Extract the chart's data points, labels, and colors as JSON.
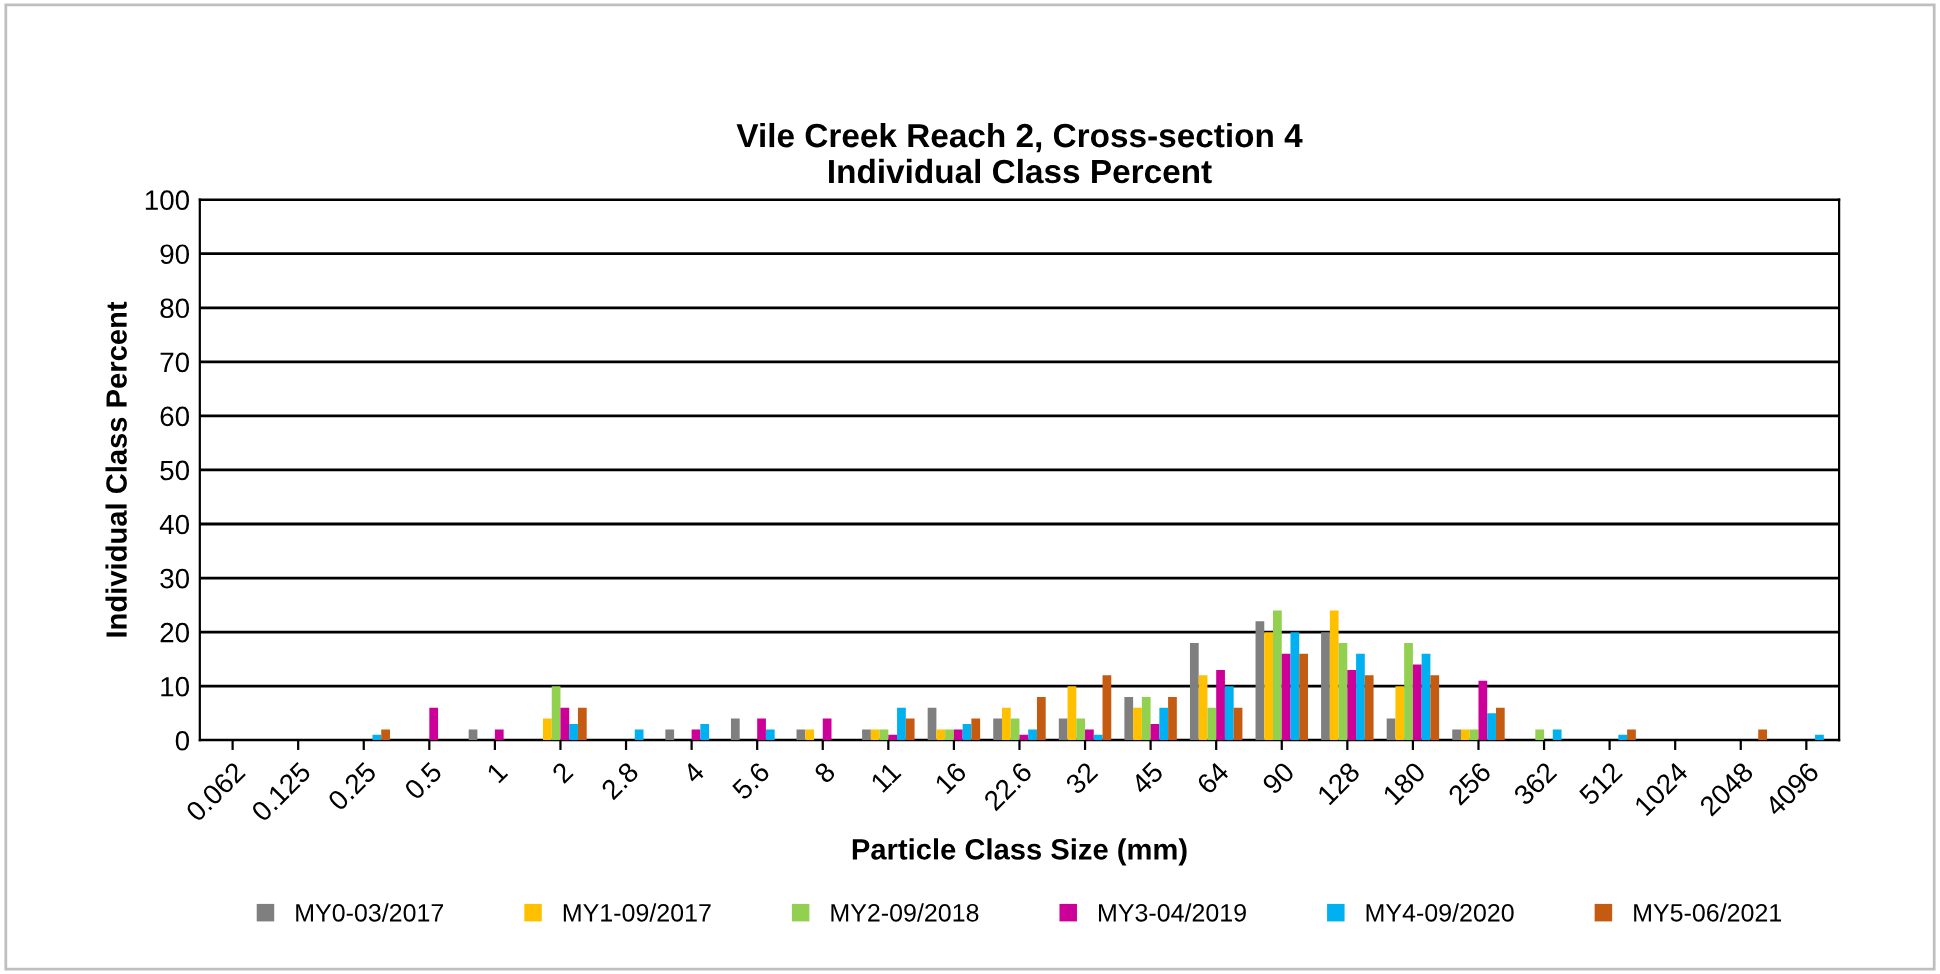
{
  "chart_data": {
    "type": "bar",
    "title": "Vile Creek Reach 2, Cross-section 4\nIndividual Class Percent",
    "xlabel": "Particle Class Size (mm)",
    "ylabel": "Individual Class Percent",
    "categories": [
      "0.062",
      "0.125",
      "0.25",
      "0.5",
      "1",
      "2",
      "2.8",
      "4",
      "5.6",
      "8",
      "11",
      "16",
      "22.6",
      "32",
      "45",
      "64",
      "90",
      "128",
      "180",
      "256",
      "362",
      "512",
      "1024",
      "2048",
      "4096"
    ],
    "series": [
      {
        "name": "MY0-03/2017",
        "color": "#7f7f7f",
        "values": [
          0,
          0,
          0,
          0,
          2,
          0,
          0,
          2,
          4,
          2,
          2,
          6,
          4,
          4,
          8,
          18,
          22,
          20,
          4,
          2,
          0,
          0,
          0,
          0,
          0
        ]
      },
      {
        "name": "MY1-09/2017",
        "color": "#ffc000",
        "values": [
          0,
          0,
          0,
          0,
          0,
          4,
          0,
          0,
          0,
          2,
          2,
          2,
          6,
          10,
          6,
          12,
          20,
          24,
          10,
          2,
          0,
          0,
          0,
          0,
          0
        ]
      },
      {
        "name": "MY2-09/2018",
        "color": "#92d050",
        "values": [
          0,
          0,
          0,
          0,
          0,
          10,
          0,
          0,
          0,
          0,
          2,
          2,
          4,
          4,
          8,
          6,
          24,
          18,
          18,
          2,
          2,
          0,
          0,
          0,
          0
        ]
      },
      {
        "name": "MY3-04/2019",
        "color": "#cc0099",
        "values": [
          0,
          0,
          0,
          6,
          2,
          6,
          0,
          2,
          4,
          4,
          1,
          2,
          1,
          2,
          3,
          13,
          16,
          13,
          14,
          11,
          0,
          0,
          0,
          0,
          0
        ]
      },
      {
        "name": "MY4-09/2020",
        "color": "#00b0f0",
        "values": [
          0,
          0,
          1,
          0,
          0,
          3,
          2,
          3,
          2,
          0,
          6,
          3,
          2,
          1,
          6,
          10,
          20,
          16,
          16,
          5,
          2,
          1,
          0,
          0,
          1
        ]
      },
      {
        "name": "MY5-06/2021",
        "color": "#c55a11",
        "values": [
          0,
          0,
          2,
          0,
          0,
          6,
          0,
          0,
          0,
          0,
          4,
          4,
          8,
          12,
          8,
          6,
          16,
          12,
          12,
          6,
          0,
          2,
          0,
          2,
          0
        ]
      }
    ],
    "ylim": [
      0,
      100
    ],
    "yticks": [
      0,
      10,
      20,
      30,
      40,
      50,
      60,
      70,
      80,
      90,
      100
    ],
    "grid": "y",
    "legend": "bottom"
  }
}
